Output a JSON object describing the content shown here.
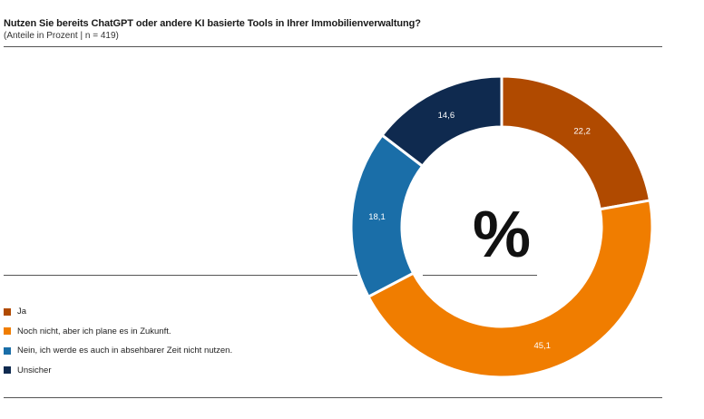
{
  "chart_data": {
    "type": "pie",
    "title": "Nutzen Sie bereits ChatGPT oder andere KI basierte Tools in Ihrer Immobilienverwaltung?",
    "subtitle": "(Anteile in Prozent | n = 419)",
    "center_label": "%",
    "categories": [
      "Ja",
      "Noch nicht, aber ich plane es in Zukunft.",
      "Nein, ich werde es auch in absehbarer Zeit nicht nutzen.",
      "Unsicher"
    ],
    "values": [
      22.2,
      45.1,
      18.1,
      14.6
    ],
    "value_labels": [
      "22,2",
      "45,1",
      "18,1",
      "14,6"
    ],
    "colors": [
      "#b04a00",
      "#f07d00",
      "#1a6ea8",
      "#0f2a4f"
    ],
    "legend_placement": "bottom-left",
    "donut": true
  }
}
